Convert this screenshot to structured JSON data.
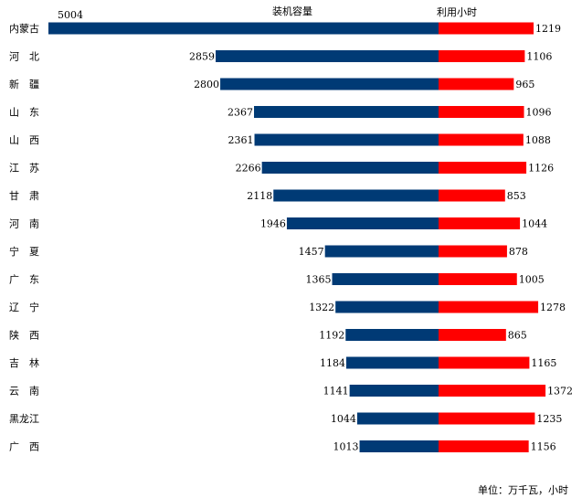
{
  "chart_data": {
    "type": "bar",
    "orientation": "horizontal-butterfly",
    "categories": [
      "内蒙古",
      "河　北",
      "新　疆",
      "山　东",
      "山　西",
      "江　苏",
      "甘　肃",
      "河　南",
      "宁　夏",
      "广　东",
      "辽　宁",
      "陕　西",
      "吉　林",
      "云　南",
      "黑龙江",
      "广　西"
    ],
    "series": [
      {
        "name": "装机容量",
        "color": "#003A75",
        "side": "left",
        "values": [
          5004,
          2859,
          2800,
          2367,
          2361,
          2266,
          2118,
          1946,
          1457,
          1365,
          1322,
          1192,
          1184,
          1141,
          1044,
          1013
        ]
      },
      {
        "name": "利用小时",
        "color": "#FF0000",
        "side": "right",
        "values": [
          1219,
          1106,
          965,
          1096,
          1088,
          1126,
          853,
          1044,
          878,
          1005,
          1278,
          865,
          1165,
          1372,
          1235,
          1156
        ]
      }
    ],
    "note": "单位：万千瓦，小时",
    "grid": false
  }
}
